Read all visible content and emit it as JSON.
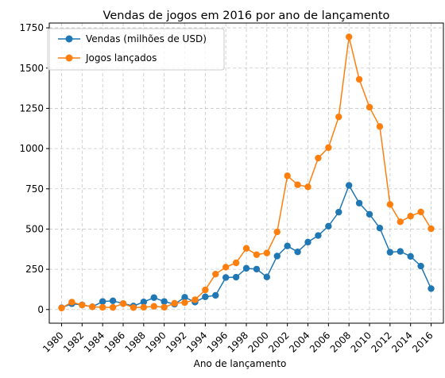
{
  "chart_data": {
    "type": "line",
    "title": "Vendas de jogos em 2016 por ano de lançamento",
    "xlabel": "Ano de lançamento",
    "ylabel": "",
    "xlim": [
      1978.8,
      2017.2
    ],
    "ylim": [
      -85,
      1780
    ],
    "grid": true,
    "legend": "top-left",
    "x": [
      1980,
      1981,
      1982,
      1983,
      1984,
      1985,
      1986,
      1987,
      1988,
      1989,
      1990,
      1991,
      1992,
      1993,
      1994,
      1995,
      1996,
      1997,
      1998,
      1999,
      2000,
      2001,
      2002,
      2003,
      2004,
      2005,
      2006,
      2007,
      2008,
      2009,
      2010,
      2011,
      2012,
      2013,
      2014,
      2015,
      2016
    ],
    "x_ticks": [
      1980,
      1982,
      1984,
      1986,
      1988,
      1990,
      1992,
      1994,
      1996,
      1998,
      2000,
      2002,
      2004,
      2006,
      2008,
      2010,
      2012,
      2014,
      2016
    ],
    "y_ticks": [
      0,
      250,
      500,
      750,
      1000,
      1250,
      1500,
      1750
    ],
    "series": [
      {
        "name": "Vendas (milhões de USD)",
        "color": "#1f77b4",
        "values": [
          11,
          36,
          29,
          17,
          50,
          54,
          37,
          22,
          47,
          74,
          50,
          33,
          76,
          46,
          79,
          88,
          199,
          201,
          256,
          251,
          202,
          332,
          395,
          358,
          419,
          460,
          518,
          605,
          771,
          661,
          592,
          506,
          356,
          361,
          330,
          270,
          130
        ]
      },
      {
        "name": "Jogos lançados",
        "color": "#ff7f0e",
        "values": [
          9,
          46,
          28,
          17,
          14,
          13,
          37,
          12,
          14,
          20,
          14,
          39,
          43,
          61,
          122,
          220,
          263,
          290,
          380,
          341,
          351,
          482,
          831,
          775,
          762,
          941,
          1006,
          1197,
          1694,
          1430,
          1257,
          1137,
          653,
          545,
          580,
          606,
          502
        ]
      }
    ]
  }
}
